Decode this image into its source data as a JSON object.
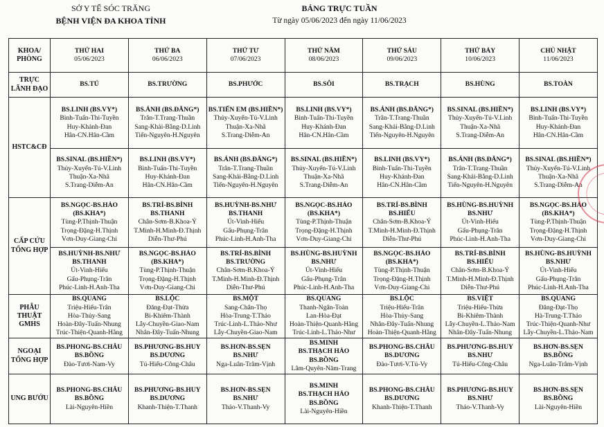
{
  "header": {
    "org": "SỞ Y TẾ SÓC TRĂNG",
    "hospital": "BỆNH VIỆN ĐA KHOA TỈNH",
    "title": "BẢNG TRỰC TUẦN",
    "date_range": "Từ ngày 05/06/2023 đến ngày 11/06/2023"
  },
  "table": {
    "department_header": "KHOA/ PHÒNG",
    "days": [
      {
        "day": "THỨ HAI",
        "date": "05/06/2023"
      },
      {
        "day": "THỨ BA",
        "date": "06/06/2023"
      },
      {
        "day": "THỨ TƯ",
        "date": "07/06/2023"
      },
      {
        "day": "THỨ NĂM",
        "date": "08/06/2023"
      },
      {
        "day": "THỨ SÁU",
        "date": "09/06/2023"
      },
      {
        "day": "THỨ BẢY",
        "date": "10/06/2023"
      },
      {
        "day": "CHỦ NHẬT",
        "date": "11/06/2023"
      }
    ],
    "rows": [
      {
        "department": "TRỰC LÃNH ĐẠO",
        "shifts": [
          [
            [
              "BS.TÚ"
            ],
            [
              "BS.TRƯỜNG"
            ],
            [
              "BS.PHƯỚC"
            ],
            [
              "BS.SÔI"
            ],
            [
              "BS.TRẠCH"
            ],
            [
              "BS.HÙNG"
            ],
            [
              "BS.TOÀN"
            ]
          ]
        ]
      },
      {
        "department": "HSTC&CĐ",
        "shifts": [
          [
            [
              "BS.LINH (BS.VY*)",
              "Bình-Tuấn-Thi-Tuyền",
              "Huy-Khánh-Đan",
              "Hân-CN.Hân-Cầm"
            ],
            [
              "BS.ÁNH (BS.ĐĂNG*)",
              "Trân-T.Trang-Thuần",
              "Sang-Khải-Bằng-D.Linh",
              "Tiến-Nguyên-H.Nguyên"
            ],
            [
              "BS.TIẾN EM (BS.HIỀN*)",
              "Thủy-Xuyến-Tú-V.Linh",
              "Thuận-Xa-Nhã",
              "S.Trang-Diễm-An"
            ],
            [
              "BS.LINH (BS.VY*)",
              "Bình-Tuấn-Thi-Tuyền",
              "Huy-Khánh-Đan",
              "Hân-CN.Hân-Cầm"
            ],
            [
              "BS.ÁNH (BS.ĐĂNG*)",
              "Trân-T.Trang-Thuần",
              "Sang-Khải-Bằng-D.Linh",
              "Tiến-Nguyên-H.Nguyên"
            ],
            [
              "BS.SINAL (BS.HIỀN*)",
              "Thủy-Xuyến-Tú-V.Linh",
              "Thuận-Xa-Nhã",
              "S.Trang-Diễm-An"
            ],
            [
              "BS.LINH (BS.VY*)",
              "Bình-Tuấn-Thi-Tuyền",
              "Huy-Khánh-Đan",
              "Hân-CN.Hân-Cầm"
            ]
          ],
          [
            [
              "BS.SINAL (BS.HIỀN*)",
              "Thủy-Xuyến-Tú-V.Linh",
              "Thuận-Xa-Nhã",
              "S.Trang-Diễm-An"
            ],
            [
              "BS.LINH (BS.VY*)",
              "Bình-Tuấn-Thi-Tuyền",
              "Huy-Khánh-Đan",
              "Hân-CN.Hân-Cầm"
            ],
            [
              "BS.ÁNH (BS.ĐĂNG*)",
              "Trân-T.Trang-Thuần",
              "Sang-Khải-Bằng-D.Linh",
              "Tiến-Nguyên-H.Nguyên"
            ],
            [
              "BS.SINAL (BS.HIỀN*)",
              "Thủy-Xuyến-Tú-V.Linh",
              "Thuận-Xa-Nhã",
              "S.Trang-Diễm-An"
            ],
            [
              "BS.LINH (BS.VY*)",
              "Bình-Tuấn-Thi-Tuyền",
              "Huy-Khánh-Đan",
              "Hân-CN.Hân-Cầm"
            ],
            [
              "BS.ÁNH (BS.ĐĂNG*)",
              "Trân-T.Trang-Thuần",
              "Sang-Khải-Bằng-D.Linh",
              "Tiến-Nguyên-H.Nguyên"
            ],
            [
              "BS.SINAL (BS.HIỀN*)",
              "Thủy-Xuyến-Tú-V.Linh",
              "Thuận-Xa-Nhã",
              "S.Trang-Diễm-An"
            ]
          ]
        ]
      },
      {
        "department": "CẤP CỨU TỔNG HỢP",
        "shifts": [
          [
            [
              "BS.NGỌC-BS.HẢO",
              "(BS.KHA*)",
              "Tùng-P.Thịnh-Thuận",
              "Trọng-Đặng-H.Thịnh",
              "Vơn-Duy-Giang-Chi"
            ],
            [
              "BS.TRÍ-BS.BÌNH",
              "BS.THANH",
              "Chân-Sơm-B.Khoa-Ý",
              "T.Minh-H.Minh-Đ.Thịnh",
              "Diễn-Thư-Phú"
            ],
            [
              "BS.HUỲNH-BS.NHƯ",
              "BS.THANH",
              "Út-Vinh-Hiếu",
              "Gấu-Phụng-Trân",
              "Phúc-Linh-H.Anh-Tha"
            ],
            [
              "BS.NGỌC-BS.HẢO",
              "(BS.KHA*)",
              "Tùng-P.Thịnh-Thuận",
              "Trọng-Đặng-H.Thịnh",
              "Vơn-Duy-Giang-Chi"
            ],
            [
              "BS.TRÍ-BS.BÌNH",
              "BS.HIẾU",
              "Chân-Sơm-B.Khoa-Ý",
              "T.Minh-H.Minh-Đ.Thịnh",
              "Diễn-Thư-Phú"
            ],
            [
              "BS.HÙNG-BS.HUỲNH",
              "BS.NHƯ",
              "Út-Vinh-Hiếu",
              "Gấu-Phụng-Trân",
              "Phúc-Linh-H.Anh-Tha"
            ],
            [
              "BS.NGỌC-BS.HẢO",
              "(BS.KHA*)",
              "Tùng-P.Thịnh-Thuận",
              "Trọng-Đặng-H.Thịnh",
              "Vơn-Duy-Giang-Chi"
            ]
          ],
          [
            [
              "BS.HUỲNH-BS.NHƯ",
              "BS.THANH",
              "Út-Vinh-Hiếu",
              "Gấu-Phụng-Trân",
              "Phúc-Linh-H.Anh-Tha"
            ],
            [
              "BS.NGỌC-BS.HẢO",
              "(BS.KHA*)",
              "Tùng-P.Thịnh-Thuận",
              "Trọng-Đặng-H.Thịnh",
              "Vơn-Duy-Giang-Chi"
            ],
            [
              "BS.TRÍ-BS.BÌNH",
              "BS.TRƯỜNG",
              "Chân-Sơm-B.Khoa-Ý",
              "T.Minh-H.Minh-Đ.Thịnh",
              "Diễn-Thư-Phú"
            ],
            [
              "BS.HÙNG-BS.HUỲNH",
              "BS.NHƯ",
              "Út-Vinh-Hiếu",
              "Gấu-Phụng-Trân",
              "Phúc-Linh-H.Anh-Tha"
            ],
            [
              "BS.NGỌC-BS.HẢO",
              "(BS.KHA*)",
              "Tùng-P.Thịnh-Thuận",
              "Trọng-Đặng-H.Thịnh",
              "Vơn-Duy-Giang-Chi"
            ],
            [
              "BS.TRÍ-BS.BÌNH",
              "BS.HIẾU",
              "Chân-Sơm-B.Khoa-Ý",
              "T.Minh-H.Minh-Đ.Thịnh",
              "Diễn-Thư-Phú"
            ],
            [
              "BS.HÙNG-BS.HUỲNH",
              "BS.NHƯ",
              "Út-Vinh-Hiếu",
              "Gấu-Phụng-Trân",
              "Phúc-Linh-H.Anh-Tha"
            ]
          ]
        ]
      },
      {
        "department": "PHẪU THUẬT GMHS",
        "shifts": [
          [
            [
              "BS.QUANG",
              "Triệu-Hiếu-Trân",
              "Hòa-Thủy-Sang",
              "Hoàn-Đây-Tuấn-Nhung",
              "Trúc-Thiện-Quanh-Hằng"
            ],
            [
              "BS.LỘC",
              "Đăng-Đạt-Thừa",
              "Bi-Khiêm-Thành",
              "Lẫy-Chuyền-Giao-Nam",
              "Nhân-Đây-Tuấn-Nhung"
            ],
            [
              "BS.MỘT",
              "Sang-Chân-Thọ",
              "Hòa-Trung-T.Thảo",
              "Trúc-Linh-L.Thảo-Như",
              "Lẫy-Chuyền-Giao-Nam"
            ],
            [
              "BS.QUANG",
              "Thanh-Ngân-Toàn",
              "Lan-Hòa-Đạt",
              "Hoàn-Thiện-Quanh-Hằng",
              "Trúc-Linh-L.Thảo-Như"
            ],
            [
              "BS.LỘC",
              "Triệu-Hiếu-Trân",
              "Hòa-Thủy-Sang",
              "Nhân-Đây-Tuấn-Nhung",
              "Hoàn-Thiện-Quanh-Hằng"
            ],
            [
              "BS.VIỆT",
              "Triệu-Hiếu-Thừa",
              "Bi-Khiêm-Thành",
              "Lẫy-Chuyền-L.Thảo-Nam",
              "Nhân-Đây-Tuấn-Nhung"
            ],
            [
              "BS.QUANG",
              "Đăng-Đạt-Thọ",
              "Hà-Trung-T.Thảo",
              "Trúc-Thiện-Quanh-Như",
              "Lẫy-Chuyền-L.Thảo-Nam"
            ]
          ]
        ]
      },
      {
        "department": "NGOẠI TỔNG HỢP",
        "shifts": [
          [
            [
              "BS.PHONG-BS.CHÂU",
              "BS.BỒNG",
              "Đào-Tươi-Nam-Vy"
            ],
            [
              "BS.PHƯƠNG-BS.HUY",
              "BS.DƯƠNG",
              "Tú-Hiếu-Công-Châu"
            ],
            [
              "BS.HƠN-BS.SẸN",
              "BS.NHƯ",
              "Nga-Luân-Trâm-Vịnh"
            ],
            [
              "BS.MINH",
              "BS.THẠCH HẢO",
              "BS.BỒNG",
              "Lâm-Quyên-Năm-Trang"
            ],
            [
              "BS.PHONG-BS.CHÂU",
              "BS.DƯƠNG",
              "Đào-Tươi-V.Tú-Vy"
            ],
            [
              "BS.PHƯƠNG-BS.HUY",
              "BS.NHƯ",
              "Tú-Hiếu-Công-Châu"
            ],
            [
              "BS.HƠN-BS.SẸN",
              "BS.BỒNG",
              "Nga-Luân-Trâm-Vịnh"
            ]
          ]
        ]
      },
      {
        "department": "UNG BƯỚU",
        "shifts": [
          [
            [
              "BS.PHONG-BS.CHÂU",
              "BS.BỒNG",
              "Lài-Nguyên-Hiền"
            ],
            [
              "BS.PHƯƠNG-BS.HUY",
              "BS.DƯƠNG",
              "Khanh-Thiện-T.Thanh"
            ],
            [
              "BS.HƠN-BS.SẸN",
              "BS.NHƯ",
              "Thảo-V.Thanh-Vy"
            ],
            [
              "BS.MINH",
              "BS.THẠCH HẢO",
              "BS.BỒNG",
              "Lài-Nguyên-Hiền"
            ],
            [
              "BS.PHONG-BS.CHÂU",
              "BS.DƯƠNG",
              "Khanh-Thiện-T.Thanh"
            ],
            [
              "BS.PHƯƠNG-BS.HUY",
              "BS.NHƯ",
              "Thảo-V.Thanh-Vy"
            ],
            [
              "BS.HƠN-BS.SẸN",
              "BS.BỒNG",
              "Lài-Nguyên-Hiền"
            ]
          ]
        ]
      }
    ]
  }
}
